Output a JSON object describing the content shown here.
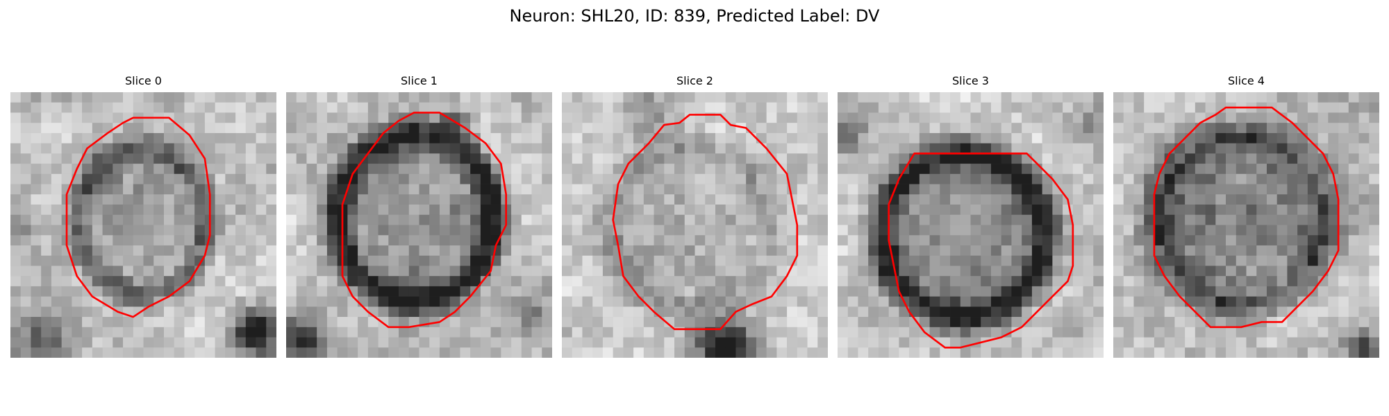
{
  "figure": {
    "title": "Neuron: SHL20, ID: 839, Predicted Label: DV"
  },
  "panels": [
    {
      "title": "Slice 0",
      "contour_color": "#ff0000"
    },
    {
      "title": "Slice 1",
      "contour_color": "#ff0000"
    },
    {
      "title": "Slice 2",
      "contour_color": "#ff0000"
    },
    {
      "title": "Slice 3",
      "contour_color": "#ff0000"
    },
    {
      "title": "Slice 4",
      "contour_color": "#ff0000"
    }
  ],
  "image": {
    "colormap": "grayscale",
    "grid_cells": 26
  }
}
